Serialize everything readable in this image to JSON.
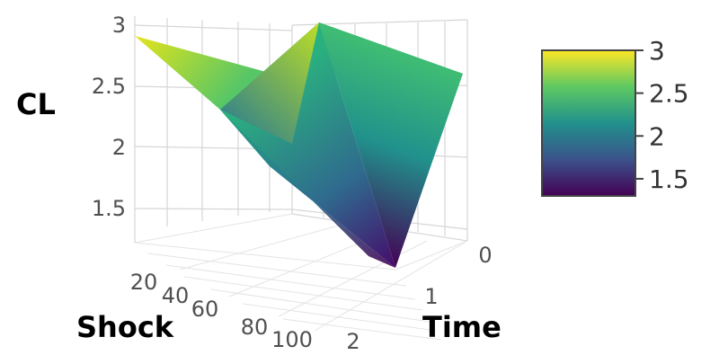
{
  "chart_data": {
    "type": "surface",
    "zlabel": "CL",
    "xlabel": "Shock",
    "ylabel": "Time",
    "x_ticks": [
      "20",
      "40",
      "60",
      "80",
      "100"
    ],
    "y_ticks": [
      "0",
      "1",
      "2"
    ],
    "z_ticks": [
      "1.5",
      "2",
      "2.5",
      "3"
    ],
    "zlim": [
      1.3,
      3.0
    ],
    "surface_points": [
      {
        "shock": 20,
        "time": 2,
        "cl": 2.95
      },
      {
        "shock": 20,
        "time": 0,
        "cl": 2.55
      },
      {
        "shock": 60,
        "time": 2,
        "cl": 2.4
      },
      {
        "shock": 60,
        "time": 0,
        "cl": 3.0
      },
      {
        "shock": 100,
        "time": 2,
        "cl": 1.3
      },
      {
        "shock": 100,
        "time": 0,
        "cl": 2.55
      }
    ],
    "colorbar": {
      "ticks": [
        "3",
        "2.5",
        "2",
        "1.5"
      ],
      "colorscale": [
        "#fde725",
        "#5ec962",
        "#21918c",
        "#3b528b",
        "#440154"
      ]
    }
  }
}
